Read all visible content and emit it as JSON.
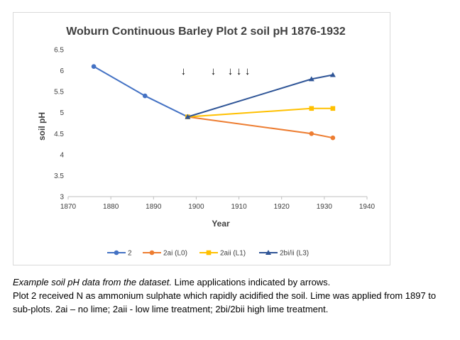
{
  "chart_data": {
    "type": "line",
    "title": "Woburn Continuous Barley Plot 2 soil pH 1876-1932",
    "xlabel": "Year",
    "ylabel": "soil pH",
    "xlim": [
      1870,
      1940
    ],
    "ylim": [
      3,
      6.5
    ],
    "x_ticks": [
      "1870",
      "1880",
      "1890",
      "1900",
      "1910",
      "1920",
      "1930",
      "1940"
    ],
    "y_ticks": [
      "3",
      "3.5",
      "4",
      "4.5",
      "5",
      "5.5",
      "6",
      "6.5"
    ],
    "grid": false,
    "legend_position": "bottom",
    "series": [
      {
        "name": "2",
        "color": "#4472C4",
        "marker": "circle",
        "points": [
          [
            1876,
            6.1
          ],
          [
            1888,
            5.4
          ],
          [
            1898,
            4.9
          ]
        ]
      },
      {
        "name": "2ai (L0)",
        "color": "#ED7D31",
        "marker": "circle",
        "points": [
          [
            1898,
            4.9
          ],
          [
            1927,
            4.5
          ],
          [
            1932,
            4.4
          ]
        ]
      },
      {
        "name": "2aii (L1)",
        "color": "#FFC000",
        "marker": "square",
        "points": [
          [
            1898,
            4.9
          ],
          [
            1927,
            5.1
          ],
          [
            1932,
            5.1
          ]
        ]
      },
      {
        "name": "2bi/ii (L3)",
        "color": "#2F5597",
        "marker": "triangle",
        "points": [
          [
            1898,
            4.9
          ],
          [
            1927,
            5.8
          ],
          [
            1932,
            5.9
          ]
        ]
      }
    ],
    "annotations": {
      "lime_arrow_years": [
        1897,
        1904,
        1908,
        1910,
        1912
      ],
      "arrow_glyph": "↓"
    }
  },
  "caption": {
    "italic": "Example soil pH data from the dataset.",
    "line1_rest": " Lime applications indicated by arrows.",
    "body": "Plot 2 received N as ammonium sulphate which rapidly acidified the soil. Lime was applied from 1897 to sub-plots. 2ai – no lime; 2aii - low lime treatment; 2bi/2bii high lime treatment."
  }
}
